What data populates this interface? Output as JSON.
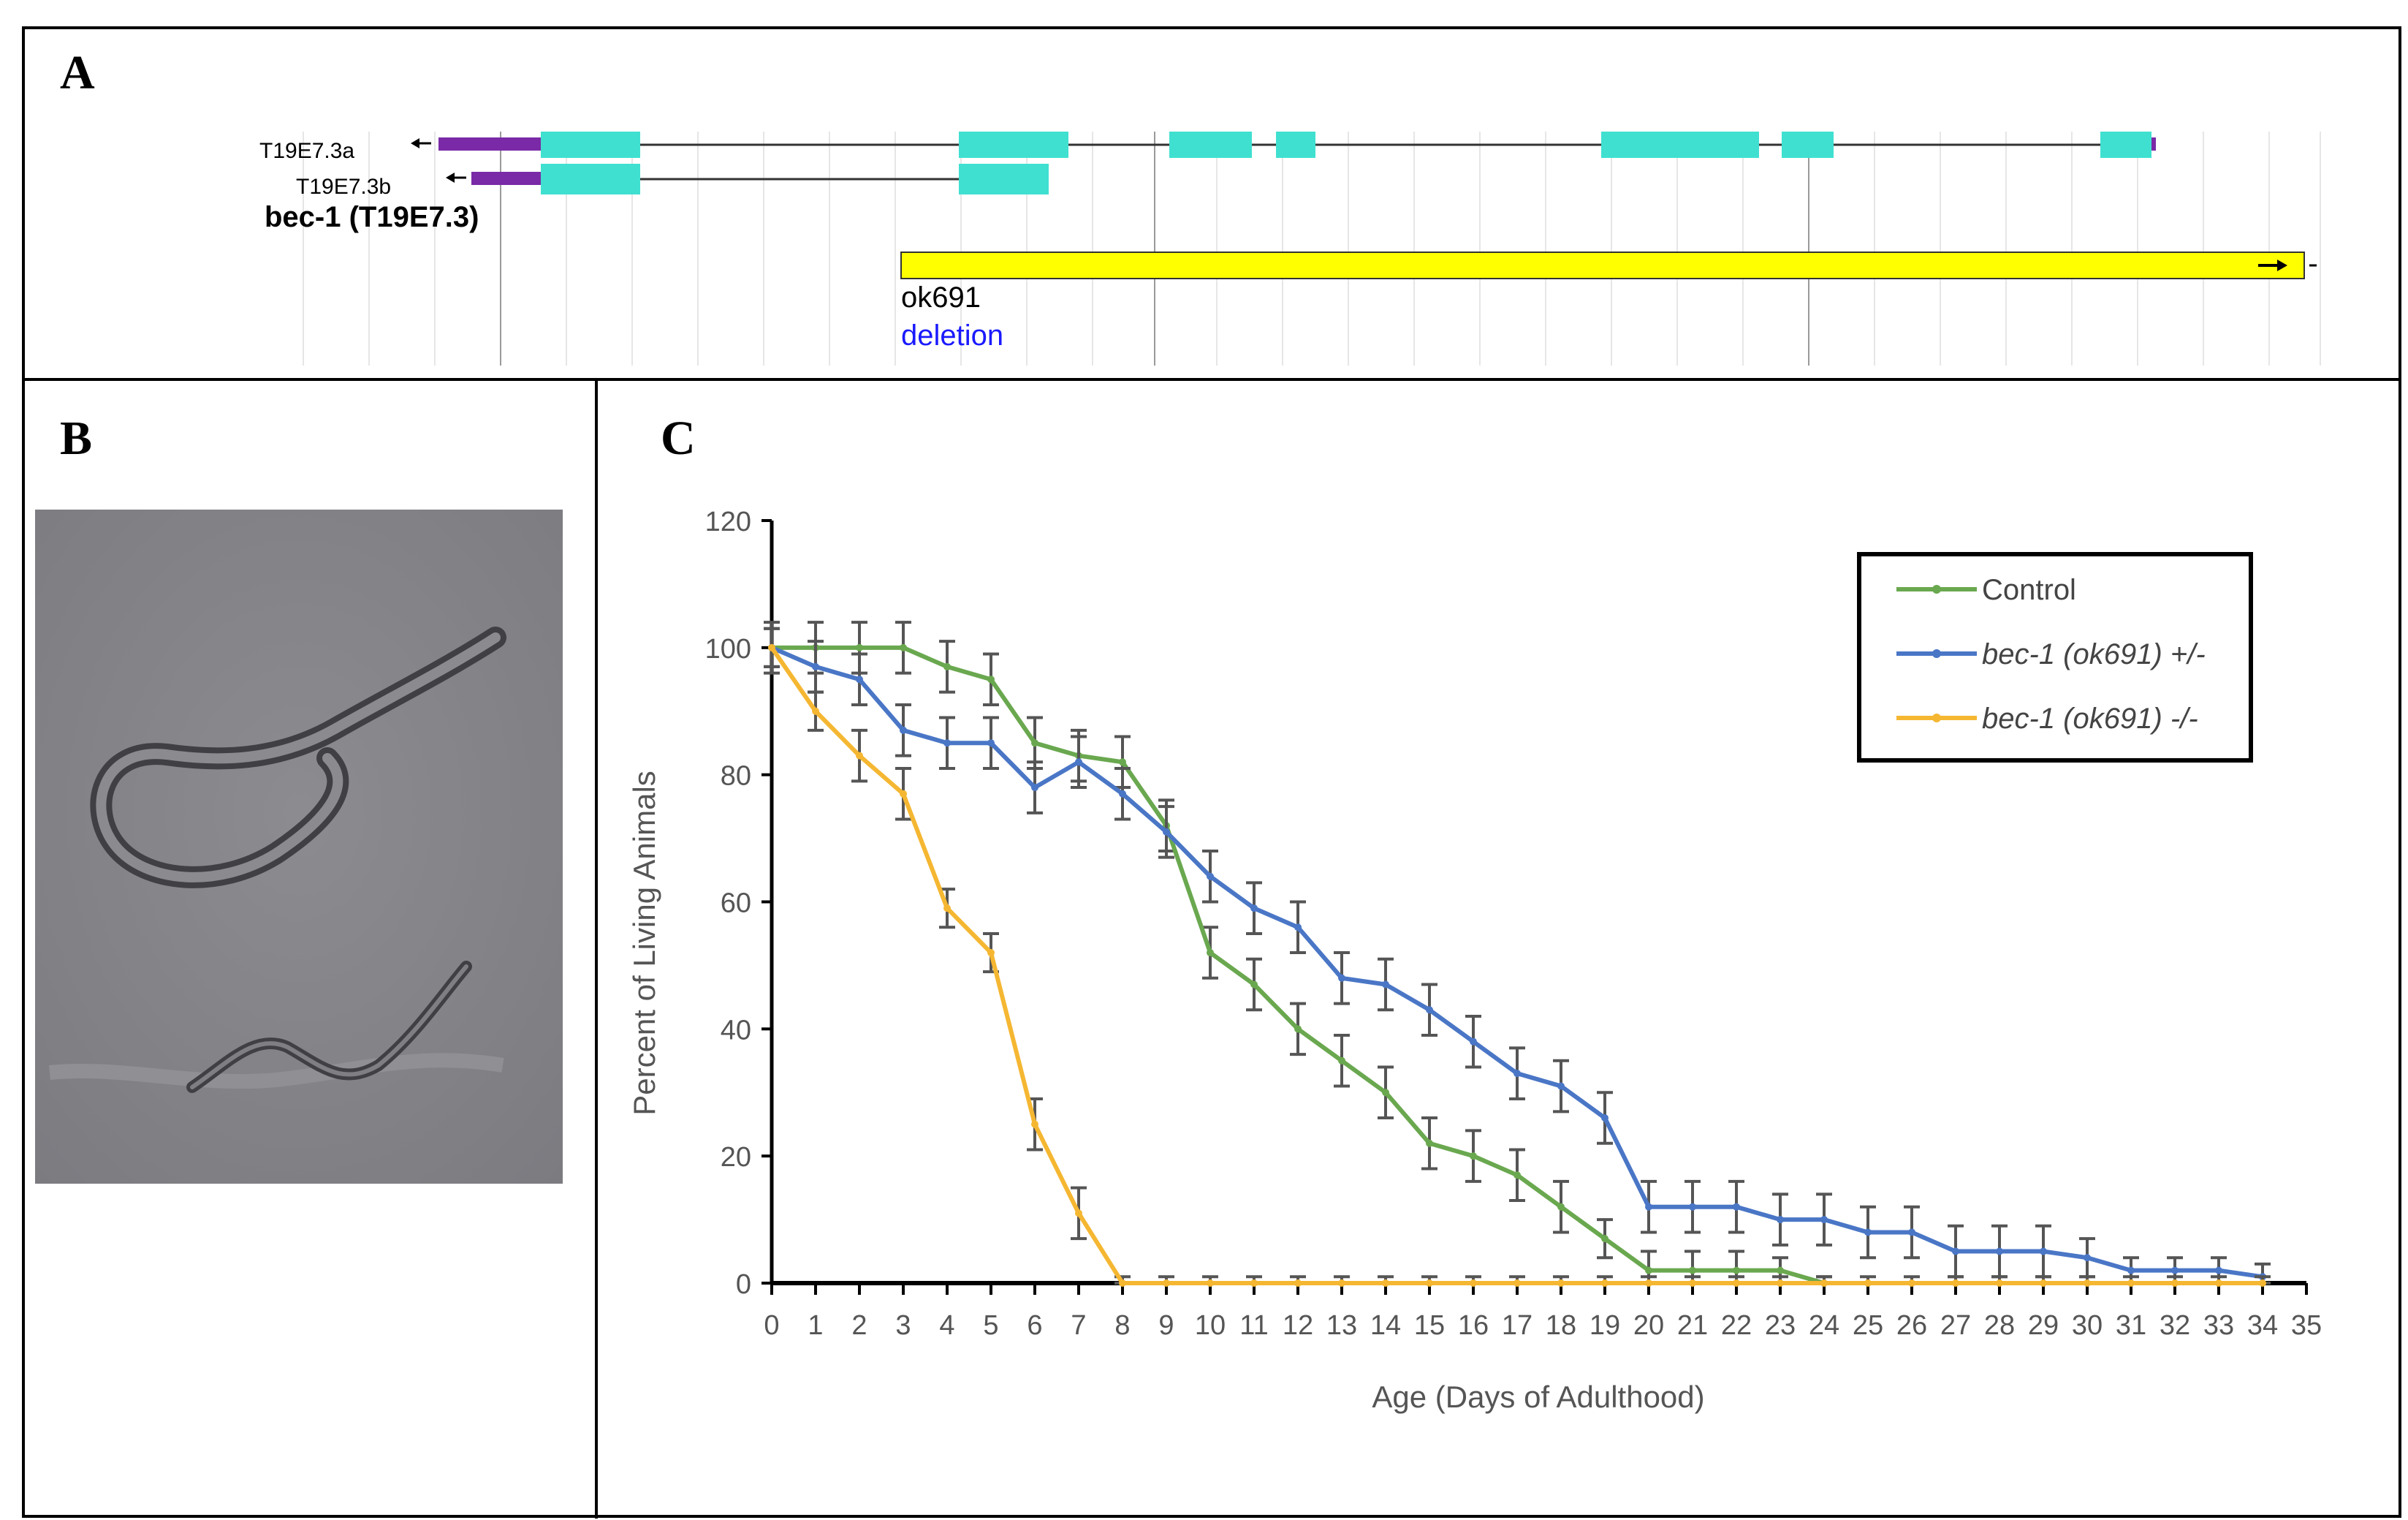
{
  "panels": {
    "a": {
      "label": "A"
    },
    "b": {
      "label": "B"
    },
    "c": {
      "label": "C"
    }
  },
  "panel_a": {
    "transcript_a": "T19E7.3a",
    "transcript_b": "T19E7.3b",
    "gene_name": "bec-1 (T19E7.3)",
    "allele": "ok691",
    "allele_type": "deletion",
    "colors": {
      "exon": "#40e0d0",
      "utr": "#7a2aa6",
      "deletion_bar": "#ffff00",
      "deletion_text": "#1a1aff"
    }
  },
  "chart_data": {
    "type": "line",
    "xlabel": "Age (Days of Adulthood)",
    "ylabel": "Percent of Living Animals",
    "xlim": [
      0,
      35
    ],
    "ylim": [
      0,
      120
    ],
    "x_ticks": [
      "0",
      "1",
      "2",
      "3",
      "4",
      "5",
      "6",
      "7",
      "8",
      "9",
      "10",
      "11",
      "12",
      "13",
      "14",
      "15",
      "16",
      "17",
      "18",
      "19",
      "20",
      "21",
      "22",
      "23",
      "24",
      "25",
      "26",
      "27",
      "28",
      "29",
      "30",
      "31",
      "32",
      "33",
      "34",
      "35"
    ],
    "y_ticks": [
      "0",
      "20",
      "40",
      "60",
      "80",
      "100",
      "120"
    ],
    "grid": false,
    "legend_position": "top-right",
    "series": [
      {
        "name": "Control",
        "color": "#6aa84f",
        "x": [
          0,
          1,
          2,
          3,
          4,
          5,
          6,
          7,
          8,
          9,
          10,
          11,
          12,
          13,
          14,
          15,
          16,
          17,
          18,
          19,
          20,
          21,
          22,
          23,
          24
        ],
        "y": [
          100,
          100,
          100,
          100,
          97,
          95,
          85,
          83,
          82,
          72,
          52,
          47,
          40,
          35,
          30,
          22,
          20,
          17,
          12,
          7,
          2,
          2,
          2,
          2,
          0
        ],
        "err": [
          3,
          4,
          4,
          4,
          4,
          4,
          4,
          4,
          4,
          4,
          4,
          4,
          4,
          4,
          4,
          4,
          4,
          4,
          4,
          3,
          3,
          3,
          3,
          2,
          1
        ]
      },
      {
        "name": "bec-1 (ok691) +/-",
        "color": "#4a76c6",
        "x": [
          0,
          1,
          2,
          3,
          4,
          5,
          6,
          7,
          8,
          9,
          10,
          11,
          12,
          13,
          14,
          15,
          16,
          17,
          18,
          19,
          20,
          21,
          22,
          23,
          24,
          25,
          26,
          27,
          28,
          29,
          30,
          31,
          32,
          33,
          34
        ],
        "y": [
          100,
          97,
          95,
          87,
          85,
          85,
          78,
          82,
          77,
          71,
          64,
          59,
          56,
          48,
          47,
          43,
          38,
          33,
          31,
          26,
          12,
          12,
          12,
          10,
          10,
          8,
          8,
          5,
          5,
          5,
          4,
          2,
          2,
          2,
          1
        ],
        "err": [
          3,
          4,
          4,
          4,
          4,
          4,
          4,
          4,
          4,
          4,
          4,
          4,
          4,
          4,
          4,
          4,
          4,
          4,
          4,
          4,
          4,
          4,
          4,
          4,
          4,
          4,
          4,
          4,
          4,
          4,
          3,
          2,
          2,
          2,
          2
        ]
      },
      {
        "name": "bec-1 (ok691) -/-",
        "color": "#f5b732",
        "x": [
          0,
          1,
          2,
          3,
          4,
          5,
          6,
          7,
          8,
          9,
          10,
          11,
          12,
          13,
          14,
          15,
          16,
          17,
          18,
          19,
          20,
          21,
          22,
          23,
          24,
          25,
          26,
          27,
          28,
          29,
          30,
          31,
          32,
          33,
          34
        ],
        "y": [
          100,
          90,
          83,
          77,
          59,
          52,
          25,
          11,
          0,
          0,
          0,
          0,
          0,
          0,
          0,
          0,
          0,
          0,
          0,
          0,
          0,
          0,
          0,
          0,
          0,
          0,
          0,
          0,
          0,
          0,
          0,
          0,
          0,
          0,
          0
        ],
        "err": [
          4,
          3,
          4,
          4,
          3,
          3,
          4,
          4,
          1,
          1,
          1,
          1,
          1,
          1,
          1,
          1,
          1,
          1,
          1,
          1,
          1,
          1,
          1,
          1,
          1,
          1,
          1,
          1,
          1,
          1,
          1,
          1,
          1,
          1,
          1
        ]
      }
    ]
  }
}
